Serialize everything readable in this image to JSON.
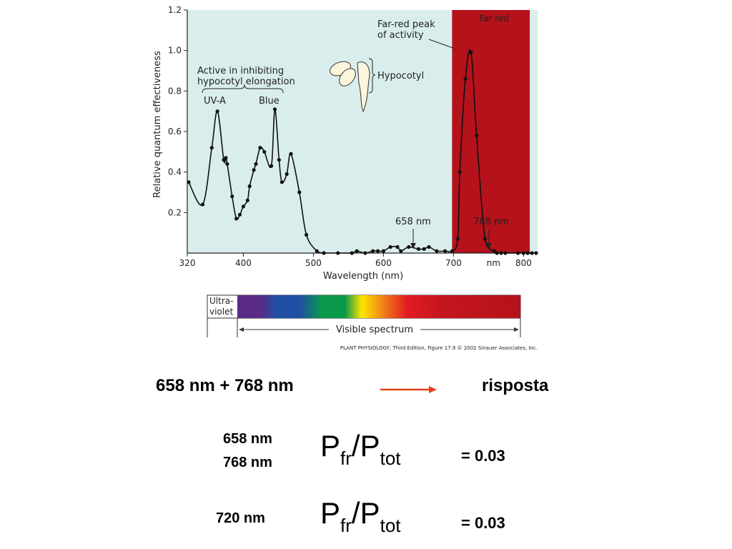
{
  "chart_data": {
    "type": "scatter",
    "ylabel": "Relative quantum effectiveness",
    "xlabel": "Wavelength (nm)",
    "xlim": [
      320,
      820
    ],
    "ylim": [
      0,
      1.2
    ],
    "xticks": [
      "320",
      "400",
      "500",
      "600",
      "700",
      "nm",
      "800"
    ],
    "xtick_values": [
      320,
      400,
      500,
      600,
      700,
      800
    ],
    "yticks": [
      "0.2",
      "0.4",
      "0.6",
      "0.8",
      "1.0",
      "1.2"
    ],
    "ytick_values": [
      0.2,
      0.4,
      0.6,
      0.8,
      1.0,
      1.2
    ],
    "series": [
      {
        "points": [
          [
            322,
            0.35
          ],
          [
            342,
            0.24
          ],
          [
            355,
            0.52
          ],
          [
            363,
            0.7
          ],
          [
            372,
            0.46
          ],
          [
            375,
            0.47
          ],
          [
            377,
            0.44
          ],
          [
            384,
            0.28
          ],
          [
            390,
            0.17
          ],
          [
            395,
            0.19
          ],
          [
            400,
            0.23
          ],
          [
            406,
            0.26
          ],
          [
            409,
            0.33
          ],
          [
            415,
            0.41
          ],
          [
            418,
            0.44
          ],
          [
            424,
            0.52
          ],
          [
            430,
            0.5
          ],
          [
            440,
            0.43
          ],
          [
            445,
            0.71
          ],
          [
            451,
            0.46
          ],
          [
            455,
            0.35
          ],
          [
            462,
            0.39
          ],
          [
            468,
            0.49
          ],
          [
            480,
            0.3
          ],
          [
            490,
            0.09
          ],
          [
            505,
            0.01
          ],
          [
            515,
            0.0
          ],
          [
            535,
            0.0
          ],
          [
            555,
            0.0
          ],
          [
            562,
            0.01
          ],
          [
            574,
            0.0
          ],
          [
            585,
            0.01
          ],
          [
            592,
            0.01
          ],
          [
            600,
            0.01
          ],
          [
            610,
            0.03
          ],
          [
            620,
            0.03
          ],
          [
            625,
            0.01
          ],
          [
            636,
            0.03
          ],
          [
            650,
            0.02
          ],
          [
            658,
            0.02
          ],
          [
            665,
            0.03
          ],
          [
            676,
            0.01
          ],
          [
            688,
            0.01
          ],
          [
            698,
            0.01
          ],
          [
            706,
            0.07
          ],
          [
            709,
            0.4
          ],
          [
            717,
            0.86
          ],
          [
            725,
            0.99
          ],
          [
            733,
            0.58
          ],
          [
            745,
            0.07
          ],
          [
            758,
            0.01
          ],
          [
            762,
            0.0
          ],
          [
            768,
            0.0
          ],
          [
            774,
            0.0
          ],
          [
            792,
            0.0
          ],
          [
            800,
            0.0
          ],
          [
            806,
            0.0
          ],
          [
            812,
            0.0
          ],
          [
            818,
            0.0
          ]
        ]
      }
    ],
    "annotations": {
      "far_red_region": "Far red",
      "far_red_peak": "Far-red peak\nof activity",
      "inhibit": "Active in inhibiting\nhypocotyl elongation",
      "uva": "UV-A",
      "blue": "Blue",
      "hypocotyl": "Hypocotyl",
      "marker_658": "658 nm",
      "marker_768": "768 nm"
    },
    "far_red_band": [
      700,
      815
    ],
    "grid": false,
    "colors": {
      "plot_bg": "#d9eeec",
      "far_red": "#b5121b",
      "line": "#111111"
    }
  },
  "spectrum_bar": {
    "uv_label": "Ultra-\nviolet",
    "visible_label": "Visible spectrum",
    "colors": [
      "#5b2a86",
      "#1f4fa3",
      "#0a9a4a",
      "#ffe600",
      "#f07a1a",
      "#e21b23",
      "#b5121b"
    ]
  },
  "credit": "PLANT PHYSIOLOGY, Third Edition, Figure 17.9  © 2002 Sinauer Associates, Inc.",
  "equation": {
    "left": "658 nm + 768 nm",
    "right": "risposta",
    "arrow_color": "#e8401a"
  },
  "rows": [
    {
      "wavelengths": [
        "658 nm",
        "768 nm"
      ],
      "p1": "P",
      "sub1": "fr",
      "slash": "/",
      "p2": "P",
      "sub2": "tot",
      "value": "= 0.03"
    },
    {
      "wavelengths": [
        "720 nm"
      ],
      "p1": "P",
      "sub1": "fr",
      "slash": "/",
      "p2": "P",
      "sub2": "tot",
      "value": "= 0.03"
    }
  ]
}
